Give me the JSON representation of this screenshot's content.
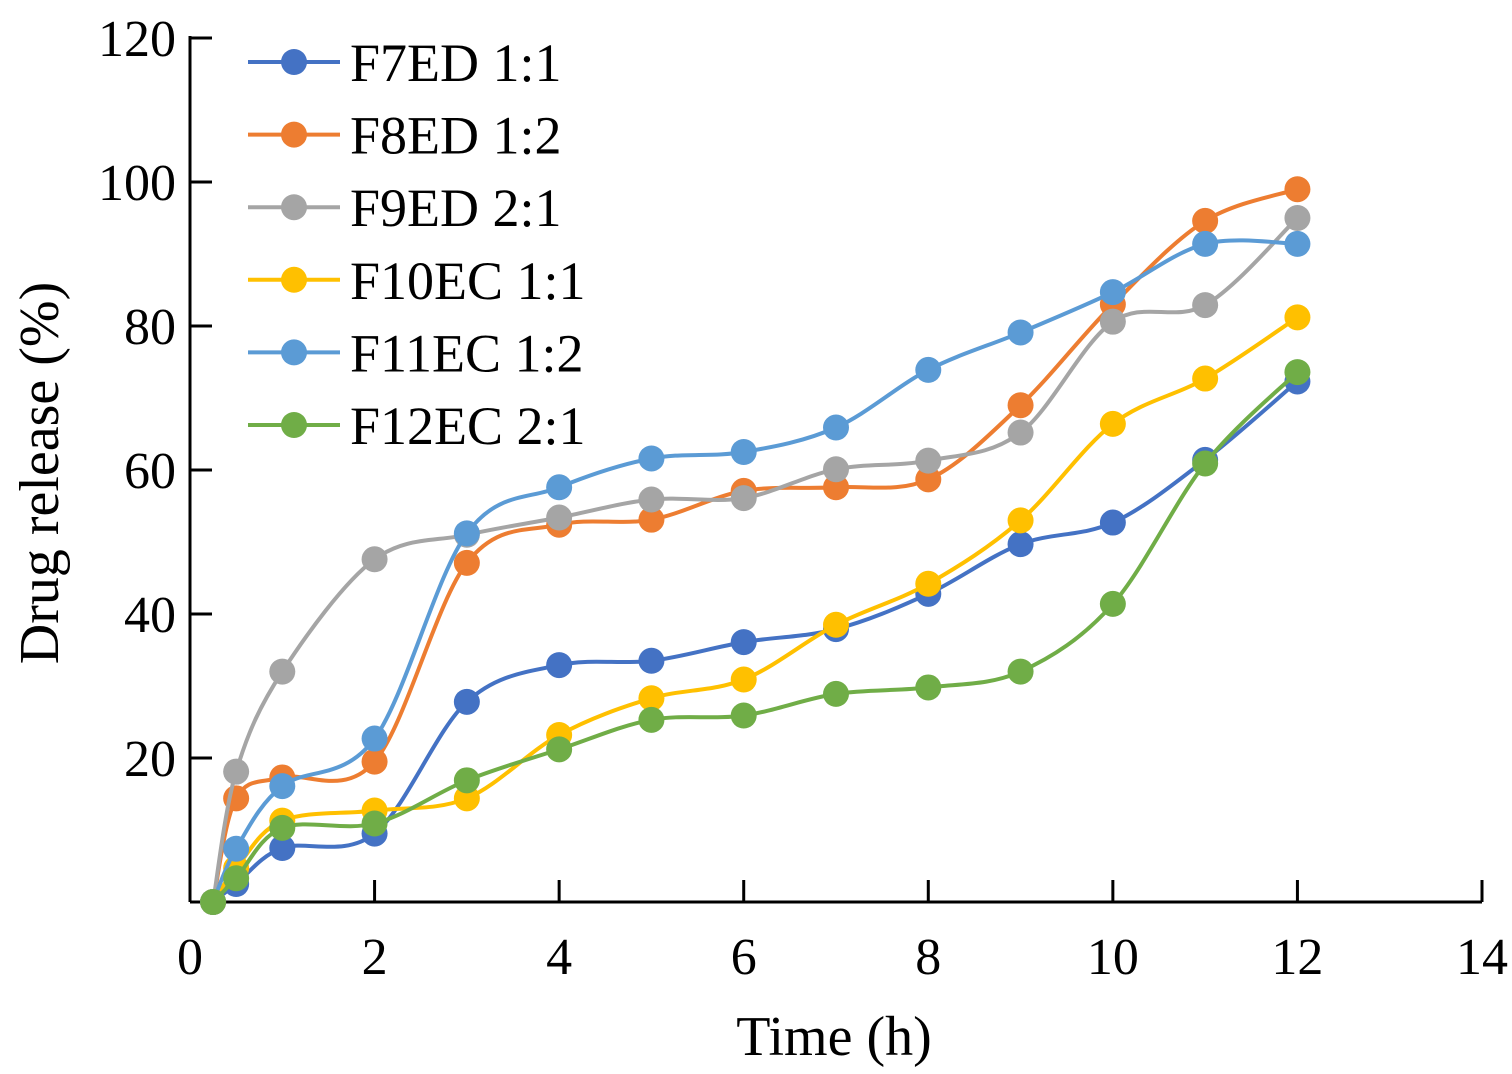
{
  "chart_data": {
    "type": "line",
    "title": "",
    "xlabel": "Time (h)",
    "ylabel": "Drug release (%)",
    "xlim": [
      0,
      14
    ],
    "ylim": [
      0,
      120
    ],
    "x_ticks": [
      "0",
      "2",
      "4",
      "6",
      "8",
      "10",
      "12",
      "14"
    ],
    "y_ticks": [
      "20",
      "40",
      "60",
      "80",
      "100",
      "120"
    ],
    "grid": false,
    "legend_position": "top-left",
    "x": [
      0.25,
      0.5,
      1,
      2,
      3,
      4,
      5,
      6,
      7,
      8,
      9,
      10,
      11,
      12
    ],
    "series": [
      {
        "name": "F7ED 1:1",
        "color": "#4472C4",
        "values": [
          0,
          2.5,
          7.5,
          9.5,
          27.8,
          32.9,
          33.5,
          36.1,
          37.9,
          42.8,
          49.7,
          52.7,
          61.4,
          72.3
        ]
      },
      {
        "name": "F8ED 1:2",
        "color": "#ED7D31",
        "values": [
          0,
          14.4,
          17.3,
          19.5,
          47.1,
          52.4,
          53.1,
          57.1,
          57.6,
          58.7,
          69.0,
          83.0,
          94.6,
          99.0
        ]
      },
      {
        "name": "F9ED 2:1",
        "color": "#A5A5A5",
        "values": [
          0,
          18.1,
          32.0,
          47.6,
          51.0,
          53.4,
          55.9,
          56.1,
          60.1,
          61.3,
          65.2,
          80.6,
          82.9,
          95.0
        ]
      },
      {
        "name": "F10EC 1:1",
        "color": "#FFC000",
        "values": [
          0,
          4.7,
          11.3,
          12.7,
          14.4,
          23.2,
          28.3,
          30.9,
          38.5,
          44.2,
          53.0,
          66.4,
          72.7,
          81.2
        ]
      },
      {
        "name": "F11EC 1:2",
        "color": "#5B9BD5",
        "values": [
          0,
          7.4,
          16.1,
          22.7,
          51.2,
          57.6,
          61.6,
          62.5,
          65.9,
          73.9,
          79.1,
          84.7,
          91.4,
          91.4
        ]
      },
      {
        "name": "F12EC 2:1",
        "color": "#70AD47",
        "values": [
          0,
          3.3,
          10.3,
          10.9,
          16.9,
          21.2,
          25.3,
          25.9,
          28.9,
          29.8,
          32.0,
          41.4,
          60.9,
          73.6
        ]
      }
    ]
  }
}
